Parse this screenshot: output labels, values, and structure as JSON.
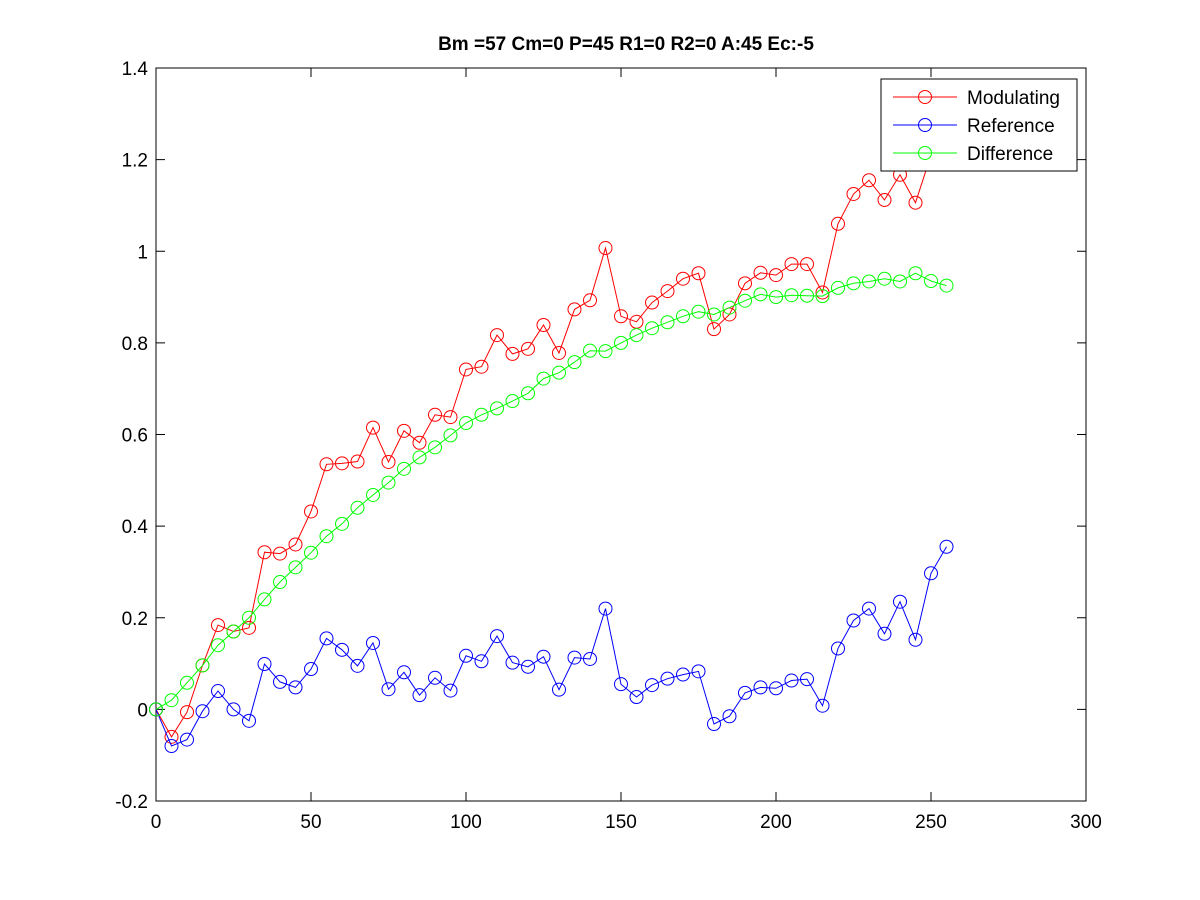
{
  "chart_data": {
    "type": "line",
    "title": "Bm =57  Cm=0  P=45  R1=0  R2=0  A:45  Ec:-5",
    "xlabel": "",
    "ylabel": "",
    "xlim": [
      0,
      300
    ],
    "ylim": [
      -0.2,
      1.4
    ],
    "xticks": [
      0,
      50,
      100,
      150,
      200,
      250,
      300
    ],
    "yticks": [
      -0.2,
      0,
      0.2,
      0.4,
      0.6,
      0.8,
      1,
      1.2,
      1.4
    ],
    "xtick_labels": [
      "0",
      "50",
      "100",
      "150",
      "200",
      "250",
      "300"
    ],
    "ytick_labels": [
      "-0.2",
      "0",
      "0.2",
      "0.4",
      "0.6",
      "0.8",
      "1",
      "1.2",
      "1.4"
    ],
    "grid": false,
    "legend_position": "top-right",
    "marker": "circle",
    "x": [
      0,
      5,
      10,
      15,
      20,
      25,
      30,
      35,
      40,
      45,
      50,
      55,
      60,
      65,
      70,
      75,
      80,
      85,
      90,
      95,
      100,
      105,
      110,
      115,
      120,
      125,
      130,
      135,
      140,
      145,
      150,
      155,
      160,
      165,
      170,
      175,
      180,
      185,
      190,
      195,
      200,
      205,
      210,
      215,
      220,
      225,
      230,
      235,
      240,
      245,
      250,
      255
    ],
    "series": [
      {
        "name": "Modulating",
        "color": "#ff0000",
        "values": [
          0,
          -0.06,
          -0.006,
          0.096,
          0.184,
          0.17,
          0.178,
          0.343,
          0.34,
          0.36,
          0.432,
          0.535,
          0.537,
          0.541,
          0.615,
          0.54,
          0.608,
          0.582,
          0.643,
          0.638,
          0.742,
          0.748,
          0.817,
          0.776,
          0.787,
          0.839,
          0.778,
          0.873,
          0.893,
          1.007,
          0.858,
          0.846,
          0.888,
          0.913,
          0.94,
          0.952,
          0.83,
          0.862,
          0.93,
          0.953,
          0.948,
          0.972,
          0.972,
          0.91,
          1.06,
          1.125,
          1.155,
          1.112,
          1.167,
          1.106,
          1.21,
          1.26
        ]
      },
      {
        "name": "Reference",
        "color": "#0000ff",
        "values": [
          0,
          -0.08,
          -0.066,
          -0.004,
          0.04,
          0,
          -0.025,
          0.099,
          0.06,
          0.048,
          0.088,
          0.155,
          0.13,
          0.095,
          0.145,
          0.044,
          0.081,
          0.031,
          0.069,
          0.041,
          0.117,
          0.105,
          0.16,
          0.102,
          0.093,
          0.115,
          0.043,
          0.113,
          0.11,
          0.22,
          0.055,
          0.027,
          0.053,
          0.067,
          0.076,
          0.083,
          -0.032,
          -0.015,
          0.036,
          0.048,
          0.046,
          0.063,
          0.066,
          0.008,
          0.133,
          0.194,
          0.22,
          0.165,
          0.235,
          0.152,
          0.297,
          0.355
        ]
      },
      {
        "name": "Difference",
        "color": "#00ff00",
        "values": [
          0,
          0.02,
          0.058,
          0.096,
          0.14,
          0.17,
          0.2,
          0.24,
          0.278,
          0.31,
          0.342,
          0.378,
          0.405,
          0.44,
          0.468,
          0.495,
          0.525,
          0.55,
          0.572,
          0.598,
          0.625,
          0.643,
          0.657,
          0.673,
          0.69,
          0.722,
          0.735,
          0.758,
          0.783,
          0.782,
          0.8,
          0.817,
          0.832,
          0.845,
          0.858,
          0.868,
          0.862,
          0.877,
          0.892,
          0.906,
          0.9,
          0.904,
          0.903,
          0.902,
          0.92,
          0.93,
          0.934,
          0.94,
          0.934,
          0.952,
          0.935,
          0.925
        ]
      }
    ]
  }
}
